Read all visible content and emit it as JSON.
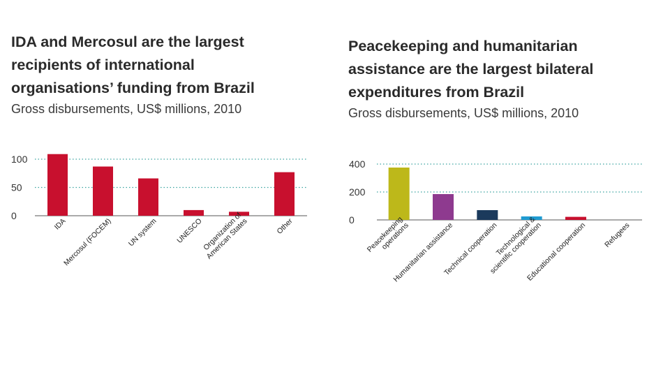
{
  "charts": {
    "left": {
      "title": "IDA and Mercosul are the largest\nrecipients of international\norganisations’ funding from Brazil",
      "subtitle": "Gross disbursements, US$ millions, 2010"
    },
    "right": {
      "title": "Peacekeeping and humanitarian\nassistance are the largest bilateral\nexpenditures from Brazil",
      "subtitle": "Gross disbursements, US$ millions, 2010"
    }
  },
  "chart_data": [
    {
      "type": "bar",
      "title": "IDA and Mercosul are the largest recipients of international organisations’ funding from Brazil",
      "subtitle": "Gross disbursements, US$ millions, 2010",
      "categories": [
        "IDA",
        "Mercosul (FOCEM)",
        "UN system",
        "UNESCO",
        "Organization of\nAmerican States",
        "Other"
      ],
      "values": [
        109,
        87,
        66,
        10,
        7,
        77
      ],
      "ylim": [
        0,
        100
      ],
      "yticks": [
        0,
        50,
        100
      ],
      "grid": true,
      "colors": [
        "#c8102e",
        "#c8102e",
        "#c8102e",
        "#c8102e",
        "#c8102e",
        "#c8102e"
      ],
      "xlabel": "",
      "ylabel": ""
    },
    {
      "type": "bar",
      "title": "Peacekeeping and humanitarian assistance are the largest bilateral expenditures from Brazil",
      "subtitle": "Gross disbursements, US$ millions, 2010",
      "categories": [
        "Peacekeeping\noperations",
        "Humanitarian assistance",
        "Technical cooperation",
        "Technological &\nscientific cooperation",
        "Educational cooperation",
        "Refugees"
      ],
      "values": [
        375,
        185,
        70,
        25,
        22,
        0
      ],
      "ylim": [
        0,
        400
      ],
      "yticks": [
        0,
        200,
        400
      ],
      "grid": true,
      "colors": [
        "#bdb81a",
        "#8e3a8f",
        "#1b3a5c",
        "#1f9bd1",
        "#c8102e",
        "#888888"
      ],
      "xlabel": "",
      "ylabel": ""
    }
  ]
}
